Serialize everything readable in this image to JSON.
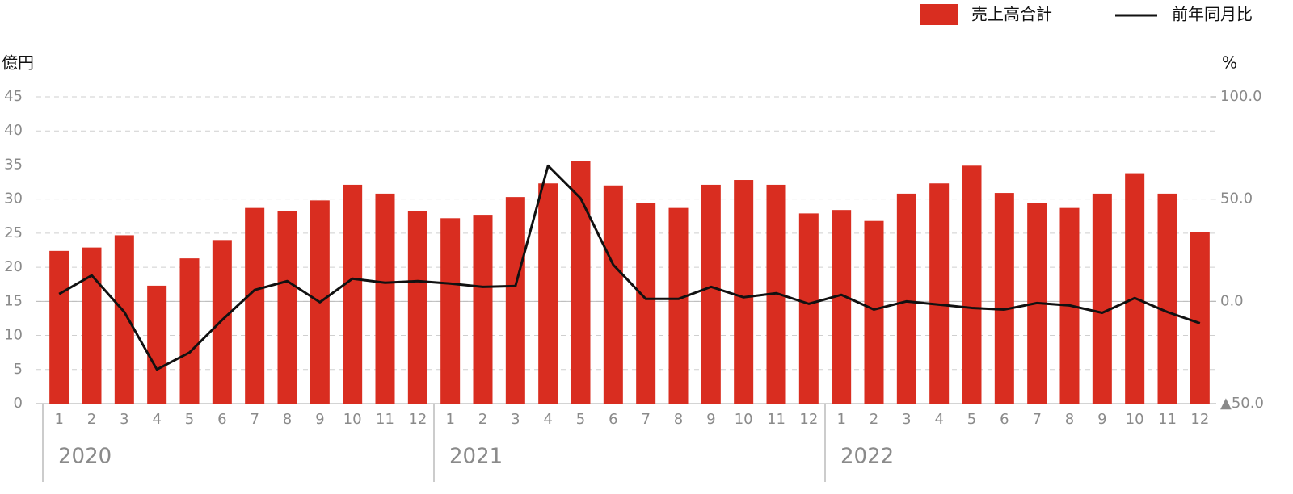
{
  "chart_data": {
    "type": "bar_line",
    "y_label": "億円",
    "y2_label": "%",
    "categories": [
      "1",
      "2",
      "3",
      "4",
      "5",
      "6",
      "7",
      "8",
      "9",
      "10",
      "11",
      "12",
      "1",
      "2",
      "3",
      "4",
      "5",
      "6",
      "7",
      "8",
      "9",
      "10",
      "11",
      "12",
      "1",
      "2",
      "3",
      "4",
      "5",
      "6",
      "7",
      "8",
      "9",
      "10",
      "11",
      "12"
    ],
    "years": [
      "2020",
      "2021",
      "2022"
    ],
    "series": [
      {
        "name": "売上高合計",
        "type": "bar",
        "color": "#d92d20",
        "values": [
          22.4,
          22.9,
          24.7,
          17.3,
          21.3,
          24.0,
          28.7,
          28.2,
          29.8,
          32.1,
          30.8,
          28.2,
          27.2,
          27.7,
          30.3,
          32.3,
          35.6,
          32.0,
          29.4,
          28.7,
          32.1,
          32.8,
          32.1,
          27.9,
          28.4,
          26.8,
          30.8,
          32.3,
          34.9,
          30.9,
          29.4,
          28.7,
          30.8,
          33.8,
          30.8,
          25.2
        ]
      },
      {
        "name": "前年同月比",
        "type": "line",
        "axis": "y2",
        "color": "#111111",
        "values": [
          3.6,
          12.7,
          -5.2,
          -33.3,
          -25.0,
          -9.1,
          5.6,
          9.9,
          -0.4,
          11.1,
          9.1,
          9.9,
          8.7,
          7.1,
          7.5,
          66.3,
          50.4,
          17.9,
          1.2,
          1.2,
          7.1,
          2.0,
          4.0,
          -1.2,
          3.2,
          -4.0,
          0.0,
          -1.6,
          -3.2,
          -4.0,
          -0.8,
          -2.0,
          -5.6,
          1.6,
          -5.2,
          -10.7
        ]
      }
    ],
    "ylim": [
      0,
      45
    ],
    "yticks": [
      0,
      5,
      10,
      15,
      20,
      25,
      30,
      35,
      40,
      45
    ],
    "y2lim": [
      -50,
      100
    ],
    "y2ticks": [
      {
        "value": 100,
        "label": "100.0"
      },
      {
        "value": 50,
        "label": "50.0"
      },
      {
        "value": 0,
        "label": "0.0"
      },
      {
        "value": -50,
        "label": "▲50.0"
      }
    ],
    "grid": true
  }
}
